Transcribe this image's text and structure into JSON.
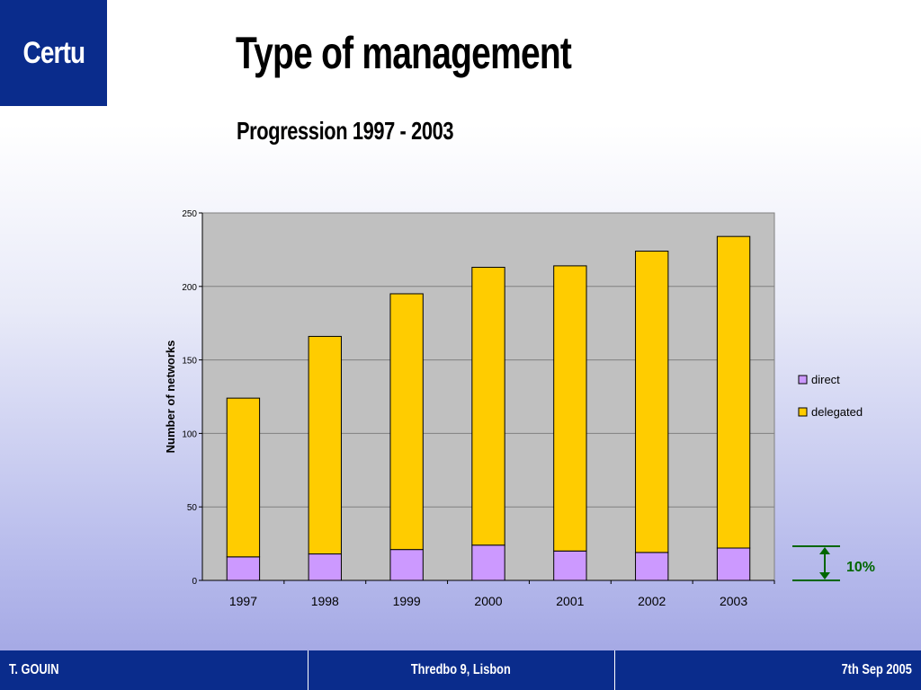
{
  "header": {
    "logo_text": "Certu",
    "title": "Type of management",
    "subtitle": "Progression 1997 - 2003"
  },
  "chart_data": {
    "type": "bar",
    "stacked": true,
    "categories": [
      "1997",
      "1998",
      "1999",
      "2000",
      "2001",
      "2002",
      "2003"
    ],
    "series": [
      {
        "name": "direct",
        "values": [
          16,
          18,
          21,
          24,
          20,
          19,
          22
        ],
        "color": "#cc99ff"
      },
      {
        "name": "delegated",
        "values": [
          108,
          148,
          174,
          189,
          194,
          205,
          212
        ],
        "color": "#ffcc00"
      }
    ],
    "totals": [
      124,
      166,
      195,
      213,
      214,
      224,
      234
    ],
    "ylabel": "Number of networks",
    "xlabel": "",
    "ylim": [
      0,
      250
    ],
    "yticks": [
      "0",
      "50",
      "100",
      "150",
      "200",
      "250"
    ],
    "grid": true,
    "plot_background": "#c0c0c0",
    "legend_position": "right",
    "annotation": {
      "text": "10%",
      "color": "#006600"
    }
  },
  "footer": {
    "left": "T. GOUIN",
    "center": "Thredbo 9, Lisbon",
    "right": "7th Sep 2005"
  },
  "colors": {
    "brand_blue": "#0a2c8c",
    "annotation_green": "#006600"
  }
}
